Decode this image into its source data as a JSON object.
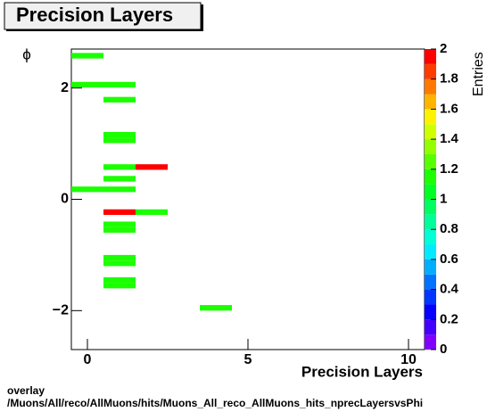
{
  "chart_data": {
    "type": "heatmap",
    "title": "Precision Layers",
    "x_label": "Precision Layers",
    "y_label": "ϕ",
    "z_label": "Entries",
    "footer": [
      "overlay",
      "/Muons/All/reco/AllMuons/hits/Muons_All_reco_AllMuons_hits_nprecLayersvsPhi"
    ],
    "xlim": [
      -0.5,
      10.5
    ],
    "xticks": [
      0,
      5,
      10
    ],
    "ylim": [
      -2.7,
      2.7
    ],
    "yticks": [
      {
        "value": -2,
        "label": "−2"
      },
      0,
      2
    ],
    "zlim": [
      0,
      2
    ],
    "zticks": [
      0,
      0.2,
      0.4,
      0.6,
      0.8,
      1,
      1.2,
      1.4,
      1.6,
      1.8,
      2
    ],
    "cells": [
      {
        "x": 0,
        "y": 2.58,
        "value": 1.1
      },
      {
        "x": 0,
        "y": 2.06,
        "value": 1.1
      },
      {
        "x": 1,
        "y": 2.06,
        "value": 1.1
      },
      {
        "x": 1,
        "y": 1.79,
        "value": 1.1
      },
      {
        "x": 1,
        "y": 1.16,
        "value": 1.1
      },
      {
        "x": 1,
        "y": 1.06,
        "value": 1.1
      },
      {
        "x": 1,
        "y": 0.58,
        "value": 1.1
      },
      {
        "x": 2,
        "y": 0.58,
        "value": 2
      },
      {
        "x": 1,
        "y": 0.37,
        "value": 1.1
      },
      {
        "x": 0,
        "y": 0.18,
        "value": 1.1
      },
      {
        "x": 1,
        "y": 0.18,
        "value": 1.1
      },
      {
        "x": 1,
        "y": -0.23,
        "value": 2
      },
      {
        "x": 2,
        "y": -0.23,
        "value": 1.1
      },
      {
        "x": 1,
        "y": -0.45,
        "value": 1.1
      },
      {
        "x": 1,
        "y": -0.55,
        "value": 1.1
      },
      {
        "x": 1,
        "y": -1.05,
        "value": 1.1
      },
      {
        "x": 1,
        "y": -1.15,
        "value": 1.1
      },
      {
        "x": 1,
        "y": -1.45,
        "value": 1.1
      },
      {
        "x": 1,
        "y": -1.55,
        "value": 1.1
      },
      {
        "x": 4,
        "y": -1.95,
        "value": 1.1
      }
    ]
  }
}
